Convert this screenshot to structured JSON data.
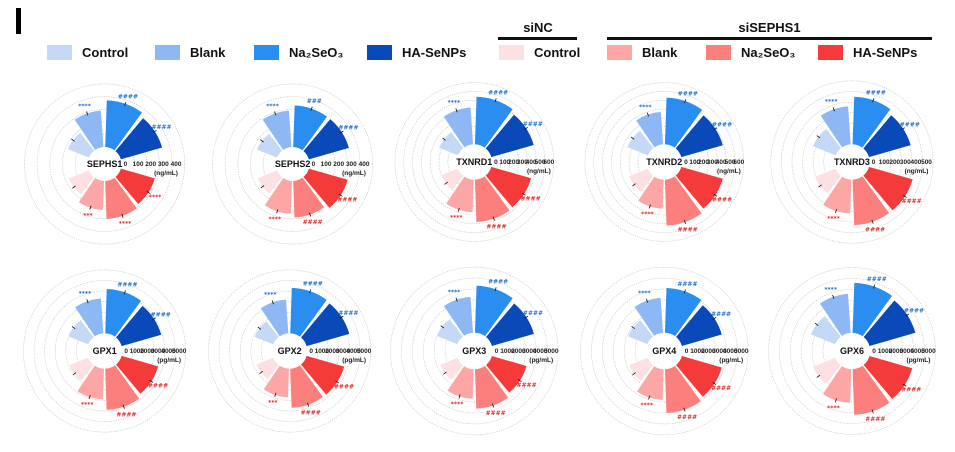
{
  "panel_label": "I",
  "legend": {
    "blue": [
      {
        "label": "Control",
        "color": "#c5d8f5"
      },
      {
        "label": "Blank",
        "color": "#8db8f3"
      },
      {
        "label": "Na₂SeO₃",
        "color": "#2a8ef0"
      },
      {
        "label": "HA-SeNPs",
        "color": "#0a49b8"
      }
    ],
    "red": [
      {
        "label": "Control",
        "color": "#fde0e2"
      },
      {
        "label": "Blank",
        "color": "#fca7a6"
      },
      {
        "label": "Na₂SeO₃",
        "color": "#fb7f7c"
      },
      {
        "label": "HA-SeNPs",
        "color": "#f53a3a"
      }
    ],
    "groups": [
      {
        "label": "siNC"
      },
      {
        "label": "siSEPHS1"
      }
    ]
  },
  "chart_data": [
    {
      "type": "polar-bar",
      "title": "SEPHS1",
      "ticks": [
        "0",
        "100",
        "200",
        "300",
        "400"
      ],
      "unit": "(ng/mL)",
      "rmax": 400,
      "categories": [
        "Control",
        "Blank",
        "Na₂SeO₃",
        "HA-SeNPs"
      ],
      "series": [
        {
          "name": "blue",
          "values": [
            180,
            290,
            370,
            340
          ],
          "sig": [
            "",
            "****",
            "####",
            "####"
          ]
        },
        {
          "name": "red",
          "values": [
            170,
            230,
            300,
            280
          ],
          "sig": [
            "",
            "***",
            "****",
            "****"
          ]
        }
      ]
    },
    {
      "type": "polar-bar",
      "title": "SEPHS2",
      "ticks": [
        "0",
        "100",
        "200",
        "300",
        "400"
      ],
      "unit": "(ng/mL)",
      "rmax": 400,
      "categories": [
        "Control",
        "Blank",
        "Na₂SeO₃",
        "HA-SeNPs"
      ],
      "series": [
        {
          "name": "blue",
          "values": [
            170,
            290,
            330,
            330
          ],
          "sig": [
            "",
            "****",
            "###",
            "####"
          ]
        },
        {
          "name": "red",
          "values": [
            165,
            260,
            290,
            320
          ],
          "sig": [
            "",
            "****",
            "####",
            "####"
          ]
        }
      ]
    },
    {
      "type": "polar-bar",
      "title": "TXNRD1",
      "ticks": [
        "0",
        "100",
        "200",
        "300",
        "400",
        "500",
        "600"
      ],
      "unit": "(ng/mL)",
      "rmax": 600,
      "categories": [
        "Control",
        "Blank",
        "Na₂SeO₃",
        "HA-SeNPs"
      ],
      "series": [
        {
          "name": "blue",
          "values": [
            230,
            420,
            540,
            500
          ],
          "sig": [
            "",
            "****",
            "####",
            "####"
          ]
        },
        {
          "name": "red",
          "values": [
            200,
            370,
            480,
            470
          ],
          "sig": [
            "",
            "****",
            "####",
            "####"
          ]
        }
      ]
    },
    {
      "type": "polar-bar",
      "title": "TXNRD2",
      "ticks": [
        "0",
        "100",
        "200",
        "300",
        "400",
        "500",
        "600"
      ],
      "unit": "(ng/mL)",
      "rmax": 600,
      "categories": [
        "Control",
        "Blank",
        "Na₂SeO₃",
        "HA-SeNPs"
      ],
      "series": [
        {
          "name": "blue",
          "values": [
            250,
            370,
            530,
            490
          ],
          "sig": [
            "",
            "****",
            "####",
            "####"
          ]
        },
        {
          "name": "red",
          "values": [
            230,
            330,
            520,
            490
          ],
          "sig": [
            "",
            "****",
            "####",
            "####"
          ]
        }
      ]
    },
    {
      "type": "polar-bar",
      "title": "TXNRD3",
      "ticks": [
        "0",
        "100",
        "200",
        "300",
        "400",
        "500"
      ],
      "unit": "(ng/mL)",
      "rmax": 500,
      "categories": [
        "Control",
        "Blank",
        "Na₂SeO₃",
        "HA-SeNPs"
      ],
      "series": [
        {
          "name": "blue",
          "values": [
            230,
            360,
            450,
            410
          ],
          "sig": [
            "",
            "****",
            "####",
            "####"
          ]
        },
        {
          "name": "red",
          "values": [
            210,
            320,
            430,
            430
          ],
          "sig": [
            "",
            "****",
            "####",
            "####"
          ]
        }
      ]
    },
    {
      "type": "polar-bar",
      "title": "GPX1",
      "ticks": [
        "0",
        "1000",
        "2000",
        "3000",
        "4000",
        "5000"
      ],
      "unit": "(pg/mL)",
      "rmax": 5000,
      "categories": [
        "Control",
        "Blank",
        "Na₂SeO₃",
        "HA-SeNPs"
      ],
      "series": [
        {
          "name": "blue",
          "values": [
            2000,
            3300,
            4200,
            3900
          ],
          "sig": [
            "",
            "****",
            "####",
            "####"
          ]
        },
        {
          "name": "red",
          "values": [
            1900,
            2900,
            3900,
            3600
          ],
          "sig": [
            "",
            "****",
            "####",
            "####"
          ]
        }
      ]
    },
    {
      "type": "polar-bar",
      "title": "GPX2",
      "ticks": [
        "0",
        "1000",
        "2000",
        "3000",
        "4000",
        "5000"
      ],
      "unit": "(pg/mL)",
      "rmax": 5000,
      "categories": [
        "Control",
        "Blank",
        "Na₂SeO₃",
        "HA-SeNPs"
      ],
      "series": [
        {
          "name": "blue",
          "values": [
            1900,
            3200,
            4300,
            4200
          ],
          "sig": [
            "",
            "****",
            "####",
            "####"
          ]
        },
        {
          "name": "red",
          "values": [
            1700,
            2700,
            3700,
            3700
          ],
          "sig": [
            "",
            "***",
            "####",
            "####"
          ]
        }
      ]
    },
    {
      "type": "polar-bar",
      "title": "GPX3",
      "ticks": [
        "0",
        "1000",
        "2000",
        "3000",
        "4000",
        "5000"
      ],
      "unit": "(pg/mL)",
      "rmax": 5000,
      "categories": [
        "Control",
        "Blank",
        "Na₂SeO₃",
        "HA-SeNPs"
      ],
      "series": [
        {
          "name": "blue",
          "values": [
            2000,
            3300,
            4300,
            4000
          ],
          "sig": [
            "",
            "****",
            "####",
            "####"
          ]
        },
        {
          "name": "red",
          "values": [
            1700,
            2700,
            3600,
            3300
          ],
          "sig": [
            "",
            "****",
            "####",
            "####"
          ]
        }
      ]
    },
    {
      "type": "polar-bar",
      "title": "GPX4",
      "ticks": [
        "0",
        "1000",
        "2000",
        "3000",
        "4000",
        "5000"
      ],
      "unit": "(pg/mL)",
      "rmax": 5000,
      "categories": [
        "Control",
        "Blank",
        "Na₂SeO₃",
        "HA-SeNPs"
      ],
      "series": [
        {
          "name": "blue",
          "values": [
            1900,
            3200,
            4100,
            3800
          ],
          "sig": [
            "",
            "****",
            "####",
            "####"
          ]
        },
        {
          "name": "red",
          "values": [
            1800,
            2800,
            4000,
            3800
          ],
          "sig": [
            "",
            "****",
            "####",
            "####"
          ]
        }
      ]
    },
    {
      "type": "polar-bar",
      "title": "GPX6",
      "ticks": [
        "0",
        "1000",
        "2000",
        "3000",
        "4000",
        "5000"
      ],
      "unit": "(pg/mL)",
      "rmax": 5000,
      "categories": [
        "Control",
        "Blank",
        "Na₂SeO₃",
        "HA-SeNPs"
      ],
      "series": [
        {
          "name": "blue",
          "values": [
            2400,
            3600,
            4600,
            4400
          ],
          "sig": [
            "",
            "****",
            "####",
            "####"
          ]
        },
        {
          "name": "red",
          "values": [
            2200,
            3100,
            4200,
            4100
          ],
          "sig": [
            "",
            "****",
            "####",
            "####"
          ]
        }
      ]
    }
  ]
}
